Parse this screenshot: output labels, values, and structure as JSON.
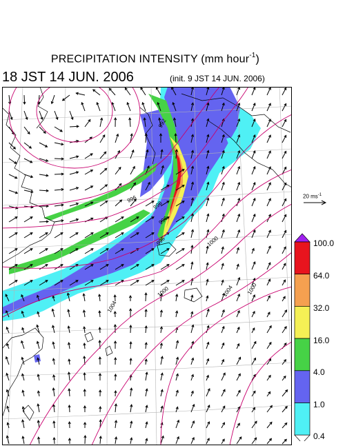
{
  "title": {
    "text": "PRECIPITATION INTENSITY (mm hour",
    "exponent": "-1",
    "close": ")"
  },
  "subtitle": {
    "valid": "18 JST 14 JUN. 2006",
    "init": "(init. 9 JST 14 JUN. 2006)"
  },
  "wind_scale": {
    "label": "20 ms",
    "exponent": "-1"
  },
  "legend": {
    "levels": [
      "100.0",
      "64.0",
      "32.0",
      "16.0",
      "4.0",
      "1.0",
      "0.4"
    ],
    "colors": [
      "#a020f0",
      "#e8141e",
      "#f5a050",
      "#f5f055",
      "#46d246",
      "#6464f0",
      "#4ff0f5",
      "#ffffff"
    ]
  },
  "isobar_labels": [
    "992",
    "996",
    "996",
    "996",
    "996",
    "1000",
    "1000",
    "1004",
    "1004",
    "1000"
  ],
  "colors": {
    "isobar": "#c8006e",
    "coast": "#000000",
    "grid": "#b4b4b4",
    "arrow": "#000000"
  }
}
